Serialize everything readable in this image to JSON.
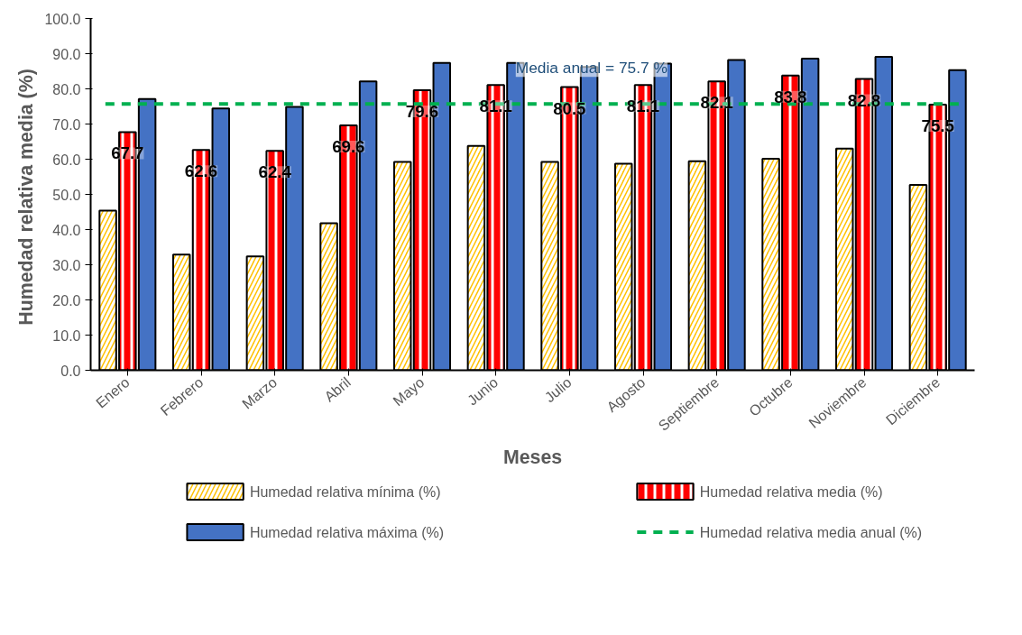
{
  "chart_data": {
    "type": "bar",
    "xlabel": "Meses",
    "ylabel": "Humedad relativa media  (%)",
    "categories": [
      "Enero",
      "Febrero",
      "Marzo",
      "Abril",
      "Mayo",
      "Junio",
      "Julio",
      "Agosto",
      "Septiembre",
      "Octubre",
      "Noviembre",
      "Diciembre"
    ],
    "series": [
      {
        "name": "Humedad relativa mínima (%)",
        "color": "#ffc000",
        "values": [
          45.4,
          32.9,
          32.4,
          41.8,
          59.2,
          63.8,
          59.2,
          58.7,
          59.4,
          60.1,
          63.0,
          52.7
        ]
      },
      {
        "name": "Humedad relativa media (%)",
        "color": "#ff0000",
        "values": [
          67.7,
          62.6,
          62.4,
          69.6,
          79.6,
          81.1,
          80.5,
          81.1,
          82.1,
          83.8,
          82.8,
          75.5
        ],
        "value_labels": [
          "67.7",
          "62.6",
          "62.4",
          "69.6",
          "79.6",
          "81.1",
          "80.5",
          "81.1",
          "82.1",
          "83.8",
          "82.8",
          "75.5"
        ]
      },
      {
        "name": "Humedad relativa máxima (%)",
        "color": "#4472c4",
        "values": [
          77.1,
          74.4,
          74.9,
          82.1,
          87.4,
          87.4,
          86.2,
          87.2,
          88.2,
          88.6,
          89.1,
          85.3
        ]
      }
    ],
    "ylim": [
      0,
      100
    ],
    "yticks": [
      {
        "value": 0,
        "label": "0.0"
      },
      {
        "value": 10,
        "label": "10.0"
      },
      {
        "value": 20,
        "label": "20.0"
      },
      {
        "value": 30,
        "label": "30.0"
      },
      {
        "value": 40,
        "label": "40.0"
      },
      {
        "value": 50,
        "label": "50.0"
      },
      {
        "value": 60,
        "label": "60.0"
      },
      {
        "value": 70,
        "label": "70.0"
      },
      {
        "value": 80,
        "label": "80.0"
      },
      {
        "value": 90,
        "label": "90.0"
      },
      {
        "value": 100,
        "label": "100.0"
      }
    ],
    "ref_lines": [
      {
        "axis": "y",
        "value": 75.7,
        "label": "Humedad relativa media anual (%)",
        "color": "#00b050",
        "line_style": "dashed"
      }
    ],
    "annotations": [
      {
        "text": "Media anual = 75.7 %",
        "x": "Julio",
        "y": 75.7
      }
    ],
    "grid": false,
    "legend": "bottom"
  }
}
